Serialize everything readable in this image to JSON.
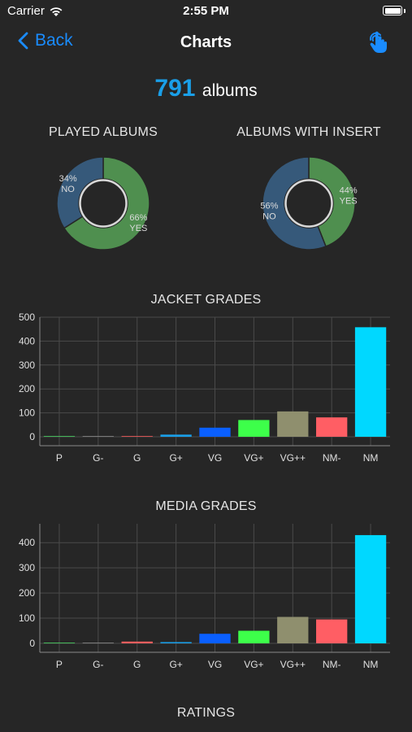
{
  "status_bar": {
    "carrier": "Carrier",
    "time": "2:55 PM"
  },
  "nav": {
    "back_label": "Back",
    "title": "Charts"
  },
  "summary": {
    "count": "791",
    "unit": "albums"
  },
  "played": {
    "title": "PLAYED ALBUMS",
    "slices": [
      {
        "label": "YES",
        "pct_text": "66%",
        "value": 66,
        "color": "#4f8f4f"
      },
      {
        "label": "NO",
        "pct_text": "34%",
        "value": 34,
        "color": "#36597a"
      }
    ]
  },
  "insert": {
    "title": "ALBUMS WITH INSERT",
    "slices": [
      {
        "label": "YES",
        "pct_text": "44%",
        "value": 44,
        "color": "#4f8f4f"
      },
      {
        "label": "NO",
        "pct_text": "56%",
        "value": 56,
        "color": "#36597a"
      }
    ]
  },
  "chart_data": [
    {
      "type": "bar",
      "title": "JACKET GRADES",
      "categories": [
        "P",
        "G-",
        "G",
        "G+",
        "VG",
        "VG+",
        "VG++",
        "NM-",
        "NM"
      ],
      "values": [
        0,
        0,
        2,
        9,
        38,
        70,
        106,
        81,
        458
      ],
      "colors": [
        "#4cd964",
        "#8e8e8e",
        "#ff5e5e",
        "#1a9fe8",
        "#0a5fff",
        "#3dff4a",
        "#8f8f6e",
        "#ff5e64",
        "#00d8ff"
      ],
      "ylim": [
        0,
        500
      ],
      "yticks": [
        0,
        100,
        200,
        300,
        400,
        500
      ],
      "grid": true
    },
    {
      "type": "bar",
      "title": "MEDIA GRADES",
      "categories": [
        "P",
        "G-",
        "G",
        "G+",
        "VG",
        "VG+",
        "VG++",
        "NM-",
        "NM"
      ],
      "values": [
        2,
        1,
        7,
        5,
        38,
        50,
        105,
        95,
        430
      ],
      "colors": [
        "#4cd964",
        "#8e8e8e",
        "#ff5e5e",
        "#1a9fe8",
        "#0a5fff",
        "#3dff4a",
        "#8f8f6e",
        "#ff5e64",
        "#00d8ff"
      ],
      "ylim": [
        0,
        475
      ],
      "yticks": [
        0,
        100,
        200,
        300,
        400
      ],
      "grid": true
    }
  ],
  "ratings": {
    "title": "RATINGS"
  }
}
